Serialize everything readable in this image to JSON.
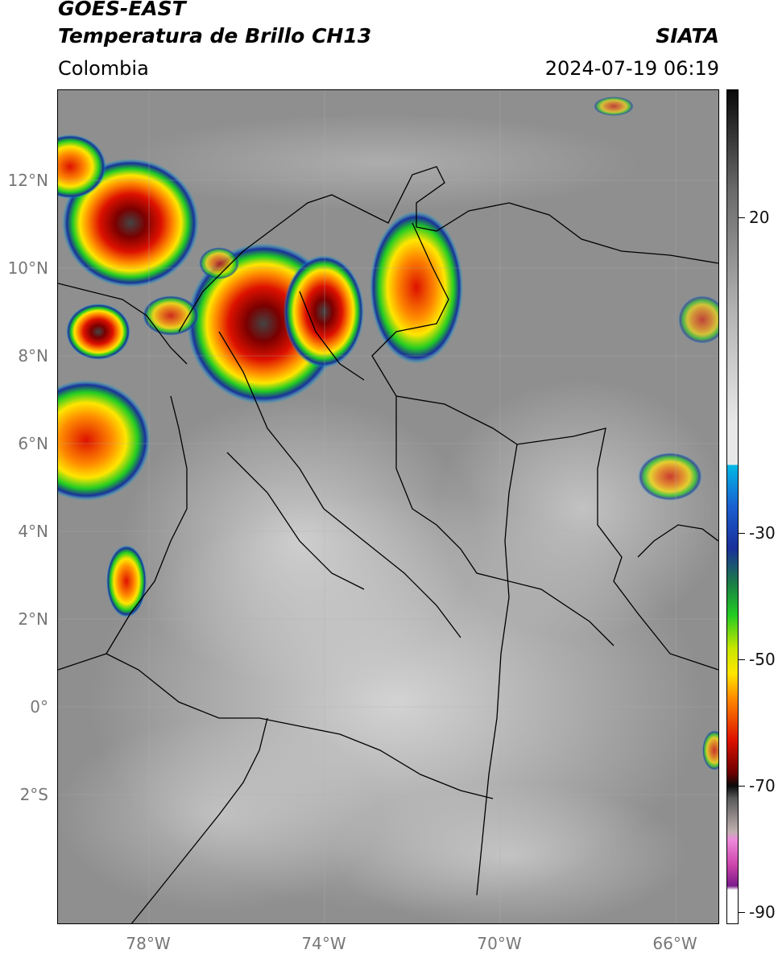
{
  "header": {
    "title_line1": "GOES-EAST",
    "title_line2": "Temperatura de Brillo CH13",
    "brand": "SIATA",
    "region": "Colombia",
    "timestamp": "2024-07-19 06:19"
  },
  "axes": {
    "lat_labels": [
      "12°N",
      "10°N",
      "8°N",
      "6°N",
      "4°N",
      "2°N",
      "0°",
      "2°S"
    ],
    "lon_labels": [
      "78°W",
      "74°W",
      "70°W",
      "66°W"
    ]
  },
  "colorbar": {
    "labels": [
      "20",
      "-30",
      "-50",
      "-70",
      "-90"
    ],
    "colors": {
      "gray_scale": "#8a8a8a",
      "cyan": "#00b8e6",
      "blue": "#1a2f9a",
      "green": "#22cc22",
      "yellow": "#ffe600",
      "orange": "#ff8a00",
      "red": "#dd1100",
      "dark": "#1a1a1a",
      "magenta": "#cc44aa"
    }
  },
  "colors": {
    "frame": "#000000",
    "border_lines": "#000000"
  }
}
